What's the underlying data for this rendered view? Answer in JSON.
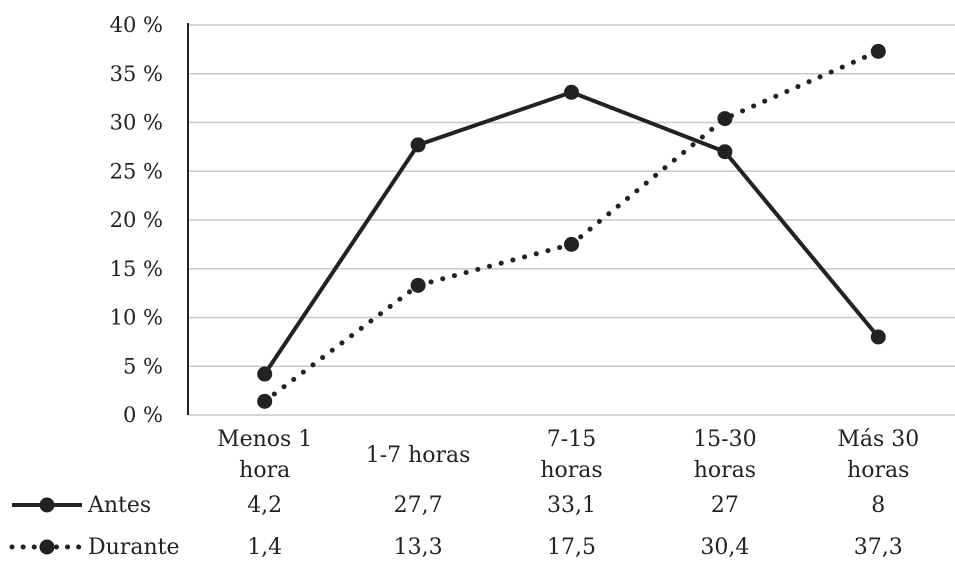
{
  "chart_data": {
    "type": "line",
    "title": "",
    "xlabel": "",
    "ylabel": "",
    "ylim": [
      0,
      40
    ],
    "yticks": [
      "0 %",
      "5 %",
      "10 %",
      "15 %",
      "20 %",
      "25 %",
      "30 %",
      "35 %",
      "40 %"
    ],
    "grid": true,
    "categories": [
      [
        "Menos 1",
        "hora"
      ],
      [
        "1-7 horas"
      ],
      [
        "7-15",
        "horas"
      ],
      [
        "15-30",
        "horas"
      ],
      [
        "Más 30",
        "horas"
      ]
    ],
    "series": [
      {
        "name": "Antes",
        "style": "solid",
        "values": [
          4.2,
          27.7,
          33.1,
          27,
          8
        ],
        "labels": [
          "4,2",
          "27,7",
          "33,1",
          "27",
          "8"
        ],
        "color": "#222222"
      },
      {
        "name": "Durante",
        "style": "dotted",
        "values": [
          1.4,
          13.3,
          17.5,
          30.4,
          37.3
        ],
        "labels": [
          "1,4",
          "13,3",
          "17,5",
          "30,4",
          "37,3"
        ],
        "color": "#222222"
      }
    ],
    "legend": "data-table-bottom"
  }
}
